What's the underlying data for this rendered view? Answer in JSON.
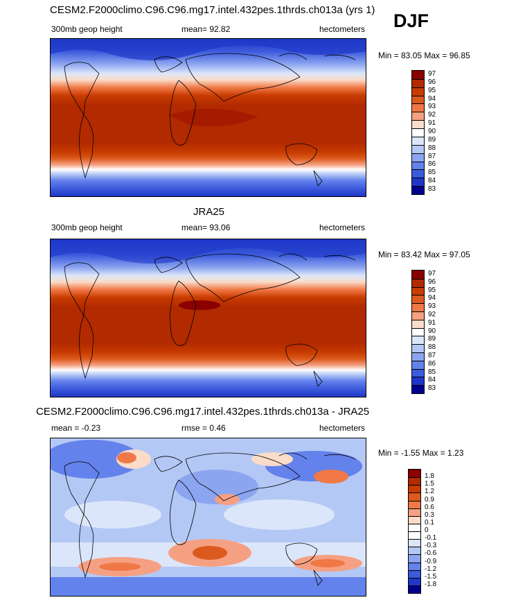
{
  "season": "DJF",
  "panels": [
    {
      "id": "model",
      "title": "CESM2.F2000climo.C96.C96.mg17.intel.432pes.1thrds.ch013a (yrs 1)",
      "left_label": "300mb geop height",
      "center_label": "mean=  92.82",
      "right_label": "hectometers",
      "minmax": "Min =  83.05 Max =  96.85",
      "colorbar": {
        "levels": [
          "97",
          "96",
          "95",
          "94",
          "93",
          "92",
          "91",
          "90",
          "89",
          "88",
          "87",
          "86",
          "85",
          "84",
          "83"
        ],
        "colors": [
          "#8b0000",
          "#b22a00",
          "#c83c00",
          "#dc5a1e",
          "#f07846",
          "#f5a082",
          "#fadcc8",
          "#ffffff",
          "#dce6fa",
          "#b4c8f5",
          "#8ca5f0",
          "#6482eb",
          "#3c5adc",
          "#1e37c8",
          "#00008c"
        ]
      }
    },
    {
      "id": "obs",
      "title": "JRA25",
      "left_label": "300mb geop height",
      "center_label": "mean=  93.06",
      "right_label": "hectometers",
      "minmax": "Min =  83.42 Max =  97.05",
      "colorbar": {
        "levels": [
          "97",
          "96",
          "95",
          "94",
          "93",
          "92",
          "91",
          "90",
          "89",
          "88",
          "87",
          "86",
          "85",
          "84",
          "83"
        ],
        "colors": [
          "#8b0000",
          "#b22a00",
          "#c83c00",
          "#dc5a1e",
          "#f07846",
          "#f5a082",
          "#fadcc8",
          "#ffffff",
          "#dce6fa",
          "#b4c8f5",
          "#8ca5f0",
          "#6482eb",
          "#3c5adc",
          "#1e37c8",
          "#00008c"
        ]
      }
    },
    {
      "id": "diff",
      "title": "CESM2.F2000climo.C96.C96.mg17.intel.432pes.1thrds.ch013a - JRA25",
      "left_label": "mean =  -0.23",
      "center_label": "rmse =   0.46",
      "right_label": "hectometers",
      "minmax": "Min =  -1.55 Max =   1.23",
      "colorbar": {
        "levels": [
          "1.8",
          "1.5",
          "1.2",
          "0.9",
          "0.6",
          "0.3",
          "0.1",
          "0",
          "-0.1",
          "-0.3",
          "-0.6",
          "-0.9",
          "-1.2",
          "-1.5",
          "-1.8"
        ],
        "colors": [
          "#8b0000",
          "#b22a00",
          "#c83c00",
          "#dc5a1e",
          "#f07846",
          "#f5a082",
          "#fadcc8",
          "#ffffff",
          "#ffffff",
          "#dce6fa",
          "#b4c8f5",
          "#8ca5f0",
          "#6482eb",
          "#3c5adc",
          "#1e37c8",
          "#00008c"
        ]
      }
    }
  ]
}
